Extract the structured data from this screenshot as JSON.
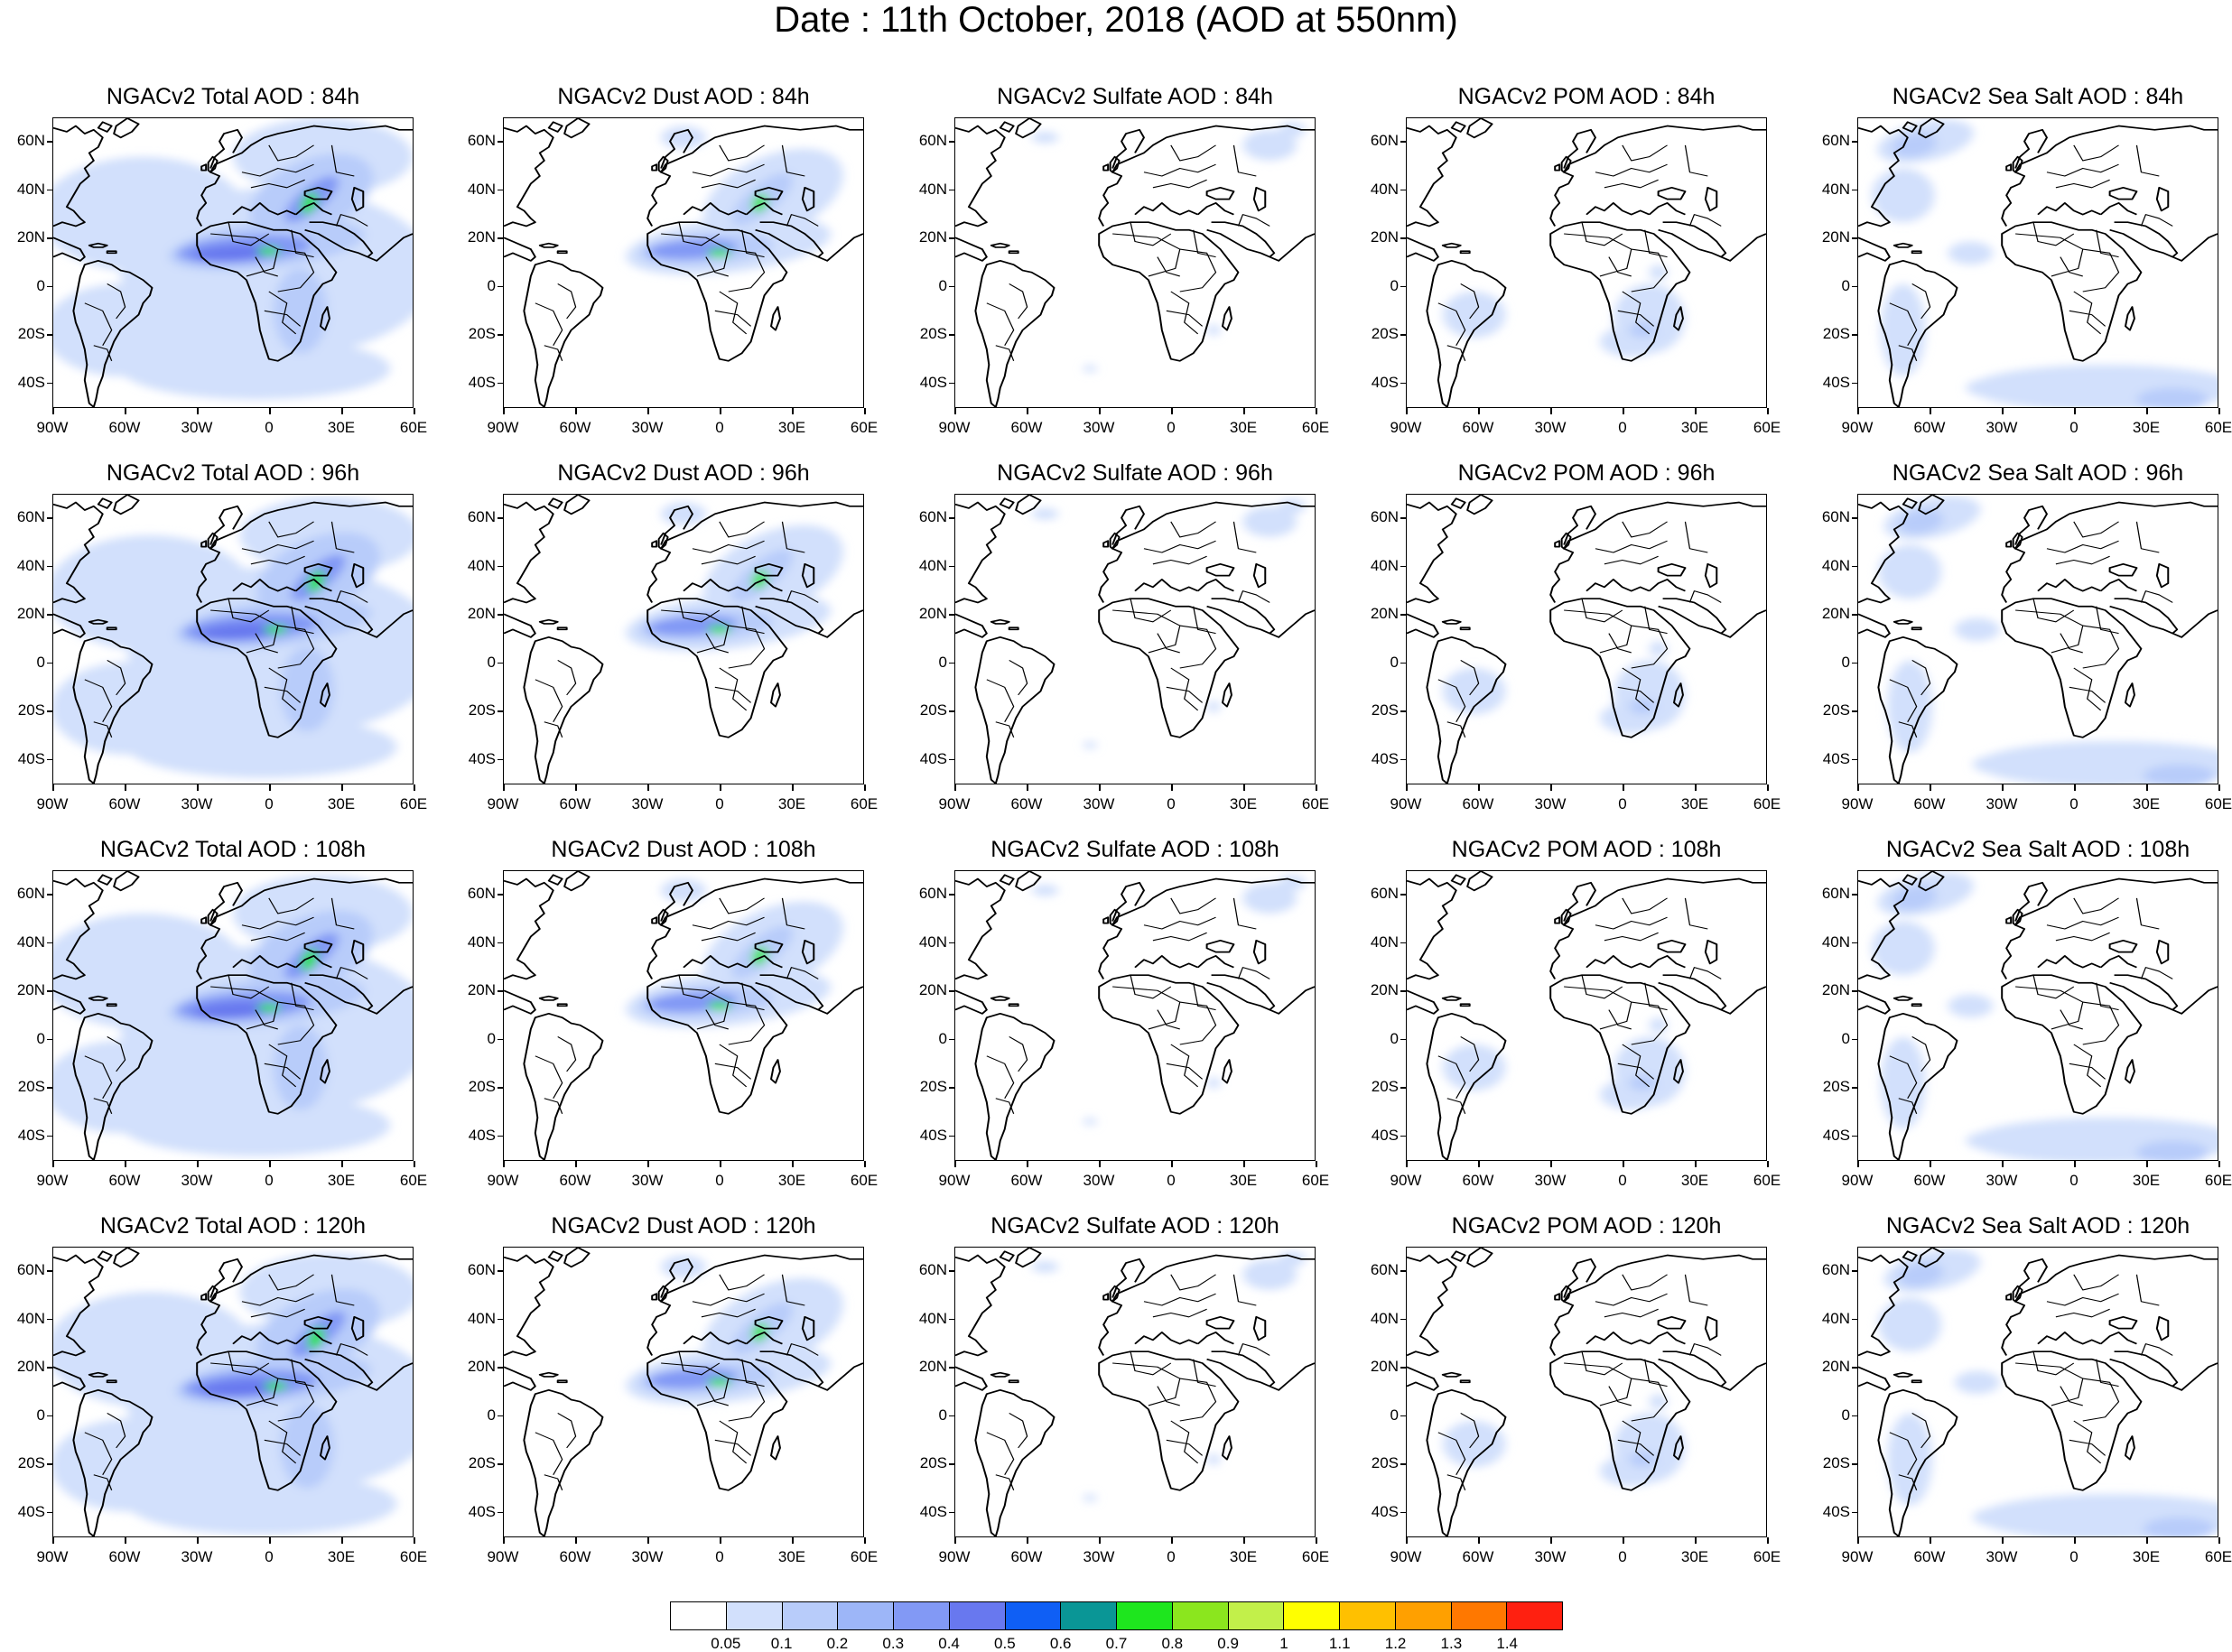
{
  "title": "Date : 11th October, 2018 (AOD at 550nm)",
  "panels": [
    [
      "NGACv2 Total AOD : 84h",
      "NGACv2 Dust AOD : 84h",
      "NGACv2 Sulfate AOD : 84h",
      "NGACv2 POM AOD : 84h",
      "NGACv2 Sea Salt AOD : 84h"
    ],
    [
      "NGACv2 Total AOD : 96h",
      "NGACv2 Dust AOD : 96h",
      "NGACv2 Sulfate AOD : 96h",
      "NGACv2 POM AOD : 96h",
      "NGACv2 Sea Salt AOD : 96h"
    ],
    [
      "NGACv2 Total AOD : 108h",
      "NGACv2 Dust AOD : 108h",
      "NGACv2 Sulfate AOD : 108h",
      "NGACv2 POM AOD : 108h",
      "NGACv2 Sea Salt AOD : 108h"
    ],
    [
      "NGACv2 Total AOD : 120h",
      "NGACv2 Dust AOD : 120h",
      "NGACv2 Sulfate AOD : 120h",
      "NGACv2 POM AOD : 120h",
      "NGACv2 Sea Salt  AOD : 120h"
    ]
  ],
  "lat_labels": [
    "60N",
    "40N",
    "20N",
    "0",
    "20S",
    "40S"
  ],
  "lon_labels": [
    "90W",
    "60W",
    "30W",
    "0",
    "30E",
    "60E"
  ],
  "colorbar": {
    "labels": [
      "0.05",
      "0.1",
      "0.2",
      "0.3",
      "0.4",
      "0.5",
      "0.6",
      "0.7",
      "0.8",
      "0.9",
      "1",
      "1.1",
      "1.2",
      "1.3",
      "1.4"
    ],
    "colors": [
      "#ffffff",
      "#d2e0fc",
      "#b8ccfa",
      "#9db6f8",
      "#8299f5",
      "#6878ef",
      "#0f5ff5",
      "#0a9696",
      "#1ee61e",
      "#8be61e",
      "#c2f04a",
      "#ffff00",
      "#ffc000",
      "#ffa000",
      "#ff7800",
      "#ff2010"
    ]
  },
  "styling": {
    "light": "#d2e0fc",
    "medium": "#b8ccfa",
    "strong": "#8299f5",
    "dense": "#6878ef",
    "hot": "#1ee61e",
    "coast": "#000000"
  }
}
